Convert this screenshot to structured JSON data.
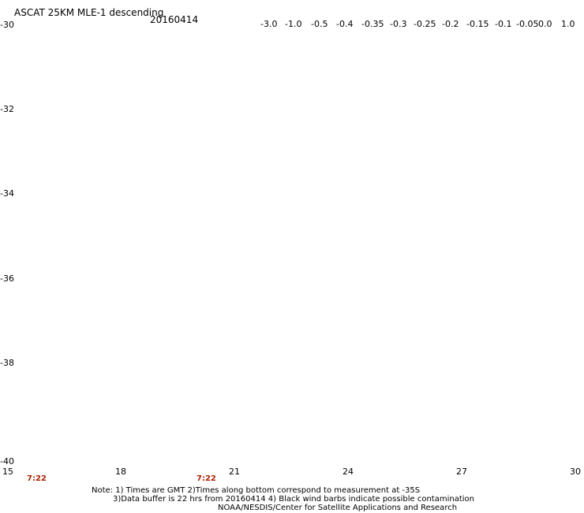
{
  "header": {
    "title": "ASCAT 25KM MLE-1 descending",
    "date": "20160414"
  },
  "colorbar": {
    "ticks": [
      "-3.0",
      "-1.0",
      "-0.5",
      "-0.4",
      "-0.35",
      "-0.3",
      "-0.25",
      "-0.2",
      "-0.15",
      "-0.1",
      "-0.05",
      "0.0",
      "1.0"
    ],
    "colors": [
      "#300030",
      "#5a007a",
      "#3a00c0",
      "#0000ff",
      "#0060ff",
      "#00b0ff",
      "#00ffff",
      "#00ff9a",
      "#00ff30",
      "#80ff00",
      "#ffff00",
      "#ffa000",
      "#ff3000"
    ]
  },
  "axes": {
    "lat_labels": [
      "-30",
      "-32",
      "-34",
      "-36",
      "-38",
      "-40"
    ],
    "lon_labels": [
      "15",
      "18",
      "21",
      "24",
      "27",
      "30"
    ]
  },
  "time_labels": [
    "7:22",
    "7:22"
  ],
  "notes": [
    "Note: 1) Times are GMT 2)Times along bottom correspond to measurement at -35S",
    "3)Data buffer is 22 hrs from 20160414 4) Black wind barbs indicate possible contamination",
    "NOAA/NESDIS/Center for Satellite Applications and Research"
  ]
}
